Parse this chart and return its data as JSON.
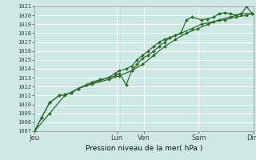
{
  "title": "",
  "xlabel": "Pression niveau de la mer( hPa )",
  "ylabel": "",
  "bg_color": "#cde8e5",
  "grid_color": "#b0d8d4",
  "line_color": "#2d6e2d",
  "ylim": [
    1007,
    1021
  ],
  "yticks": [
    1007,
    1008,
    1009,
    1010,
    1011,
    1012,
    1013,
    1014,
    1015,
    1016,
    1017,
    1018,
    1019,
    1020,
    1021
  ],
  "day_labels": [
    "Jeu",
    "Lun",
    "Ven",
    "Sam",
    "Dim"
  ],
  "day_positions": [
    0.0,
    3.0,
    4.0,
    6.0,
    8.0
  ],
  "xlim": [
    0,
    8
  ],
  "series1": [
    [
      0.0,
      1007.0
    ],
    [
      0.25,
      1008.5
    ],
    [
      0.55,
      1010.2
    ],
    [
      0.9,
      1011.0
    ],
    [
      1.1,
      1011.1
    ],
    [
      1.35,
      1011.3
    ],
    [
      1.6,
      1011.8
    ],
    [
      1.9,
      1012.2
    ],
    [
      2.1,
      1012.5
    ],
    [
      2.4,
      1012.8
    ],
    [
      2.7,
      1013.0
    ],
    [
      2.95,
      1013.2
    ],
    [
      3.1,
      1013.5
    ],
    [
      3.35,
      1012.2
    ],
    [
      3.55,
      1013.8
    ],
    [
      3.75,
      1014.5
    ],
    [
      3.95,
      1015.2
    ],
    [
      4.15,
      1015.5
    ],
    [
      4.35,
      1016.0
    ],
    [
      4.55,
      1016.5
    ],
    [
      4.75,
      1017.0
    ],
    [
      4.95,
      1017.5
    ],
    [
      5.15,
      1017.8
    ],
    [
      5.35,
      1018.0
    ],
    [
      5.55,
      1019.5
    ],
    [
      5.75,
      1019.8
    ],
    [
      6.1,
      1019.5
    ],
    [
      6.3,
      1019.6
    ],
    [
      6.55,
      1019.8
    ],
    [
      6.75,
      1020.2
    ],
    [
      6.95,
      1020.3
    ],
    [
      7.15,
      1020.2
    ],
    [
      7.35,
      1020.0
    ],
    [
      7.55,
      1020.1
    ],
    [
      7.75,
      1021.0
    ],
    [
      7.95,
      1020.2
    ]
  ],
  "series2": [
    [
      0.0,
      1007.0
    ],
    [
      0.25,
      1008.5
    ],
    [
      0.55,
      1010.2
    ],
    [
      0.9,
      1011.0
    ],
    [
      1.1,
      1011.1
    ],
    [
      1.35,
      1011.3
    ],
    [
      1.6,
      1011.8
    ],
    [
      1.9,
      1012.2
    ],
    [
      2.1,
      1012.4
    ],
    [
      2.4,
      1012.7
    ],
    [
      2.7,
      1013.0
    ],
    [
      2.95,
      1013.5
    ],
    [
      3.1,
      1013.8
    ],
    [
      3.35,
      1014.0
    ],
    [
      3.55,
      1014.3
    ],
    [
      3.75,
      1015.0
    ],
    [
      3.95,
      1015.5
    ],
    [
      4.15,
      1016.0
    ],
    [
      4.35,
      1016.5
    ],
    [
      4.55,
      1017.0
    ],
    [
      4.75,
      1017.3
    ],
    [
      4.95,
      1017.5
    ],
    [
      5.35,
      1018.0
    ],
    [
      5.75,
      1018.5
    ],
    [
      6.1,
      1019.0
    ],
    [
      6.55,
      1019.3
    ],
    [
      6.95,
      1019.5
    ],
    [
      7.35,
      1019.8
    ],
    [
      7.75,
      1020.0
    ],
    [
      7.95,
      1020.2
    ]
  ],
  "series3": [
    [
      0.0,
      1007.0
    ],
    [
      0.55,
      1009.0
    ],
    [
      1.1,
      1011.0
    ],
    [
      1.6,
      1011.8
    ],
    [
      2.1,
      1012.3
    ],
    [
      2.7,
      1012.8
    ],
    [
      3.1,
      1013.2
    ],
    [
      3.55,
      1013.8
    ],
    [
      3.95,
      1014.5
    ],
    [
      4.35,
      1015.5
    ],
    [
      4.75,
      1016.5
    ],
    [
      5.15,
      1017.3
    ],
    [
      5.55,
      1018.0
    ],
    [
      5.95,
      1018.5
    ],
    [
      6.35,
      1019.0
    ],
    [
      6.75,
      1019.5
    ],
    [
      7.15,
      1019.8
    ],
    [
      7.55,
      1020.2
    ],
    [
      7.95,
      1020.2
    ]
  ]
}
